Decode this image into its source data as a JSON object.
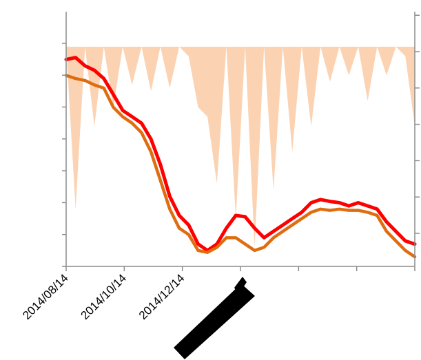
{
  "chart_data": {
    "type": "line",
    "x_tick_labels": [
      "2014/08/14",
      "2014/10/14",
      "2014/12/14",
      "",
      "",
      "",
      ""
    ],
    "series": [
      {
        "role": "primary-line",
        "color": "#ff0000",
        "values": [
          5.85,
          5.88,
          5.75,
          5.68,
          5.55,
          5.3,
          5.05,
          4.95,
          4.85,
          4.6,
          4.2,
          3.7,
          3.4,
          3.25,
          2.95,
          2.85,
          2.95,
          3.2,
          3.4,
          3.38,
          3.2,
          3.05,
          3.15,
          3.25,
          3.35,
          3.45,
          3.6,
          3.65,
          3.62,
          3.6,
          3.55,
          3.6,
          3.55,
          3.5,
          3.3,
          3.15,
          3.0,
          2.95
        ]
      },
      {
        "role": "secondary-line",
        "color": "#e06c10",
        "values": [
          5.6,
          5.55,
          5.52,
          5.45,
          5.4,
          5.1,
          4.95,
          4.85,
          4.7,
          4.4,
          3.95,
          3.5,
          3.2,
          3.1,
          2.85,
          2.82,
          2.9,
          3.05,
          3.05,
          2.95,
          2.85,
          2.9,
          3.05,
          3.15,
          3.25,
          3.35,
          3.45,
          3.5,
          3.48,
          3.5,
          3.48,
          3.48,
          3.45,
          3.4,
          3.15,
          3.0,
          2.85,
          2.75
        ]
      },
      {
        "role": "shaded-area",
        "color": "#fbd3b3",
        "values": [
          6.05,
          3.5,
          6.05,
          4.8,
          6.05,
          5.1,
          6.05,
          5.45,
          6.05,
          5.35,
          6.05,
          5.4,
          6.05,
          5.9,
          5.1,
          4.95,
          3.9,
          6.05,
          3.35,
          6.05,
          2.9,
          6.05,
          3.8,
          6.05,
          4.4,
          6.05,
          4.8,
          6.05,
          5.5,
          6.05,
          5.6,
          6.05,
          5.2,
          6.05,
          5.6,
          6.05,
          5.9,
          4.8
        ]
      }
    ],
    "ylim": [
      2.6,
      6.6
    ],
    "grid": false,
    "legend": "none"
  }
}
